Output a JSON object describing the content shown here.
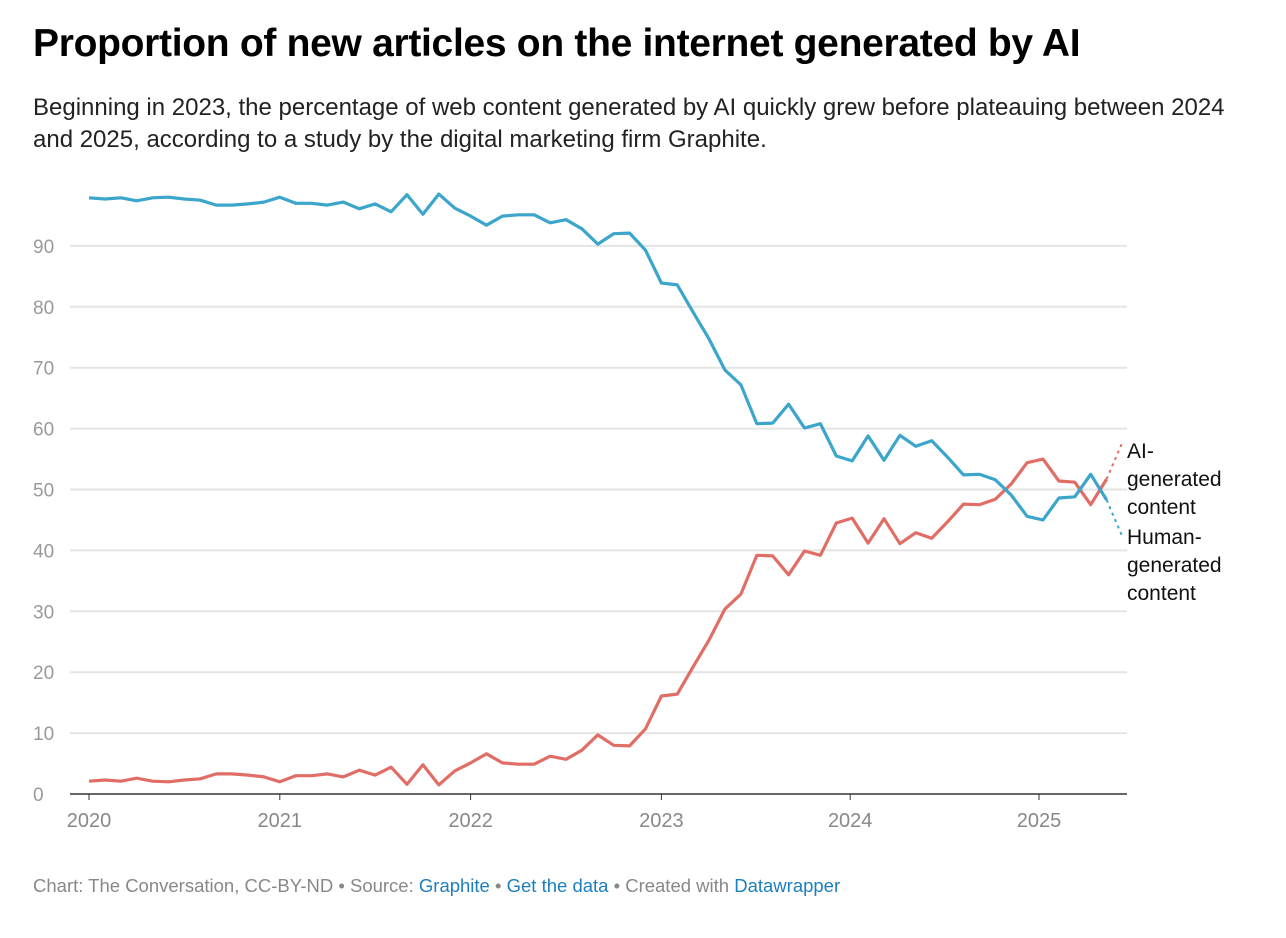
{
  "chart_data": {
    "type": "line",
    "title": "Proportion of new articles on the internet generated by AI",
    "subtitle": "Beginning in 2023, the percentage of web content generated by AI quickly grew before plateauing between 2024 and 2025, according to a study by the digital marketing firm Graphite.",
    "xlabel": "",
    "ylabel": "",
    "ylim": [
      0,
      100
    ],
    "yticks": [
      "0",
      "10",
      "20",
      "30",
      "40",
      "50",
      "60",
      "70",
      "80",
      "90"
    ],
    "xticks": [
      "2020",
      "2021",
      "2022",
      "2023",
      "2024",
      "2025"
    ],
    "x_start": "2020-01",
    "x_step": "month",
    "grid": true,
    "series": [
      {
        "name": "Human-generated content",
        "label_lines": [
          "Human-",
          "generated",
          "content"
        ],
        "color": "#3ba5cb",
        "values": [
          97.9,
          97.7,
          97.9,
          97.4,
          97.9,
          98.0,
          97.7,
          97.5,
          96.7,
          96.7,
          96.9,
          97.2,
          98.0,
          97.0,
          97.0,
          96.7,
          97.2,
          96.1,
          96.9,
          95.6,
          98.4,
          95.2,
          98.5,
          96.2,
          94.9,
          93.4,
          94.9,
          95.1,
          95.1,
          93.8,
          94.3,
          92.8,
          90.3,
          92.0,
          92.1,
          89.3,
          83.9,
          83.6,
          79.1,
          74.7,
          69.6,
          67.2,
          60.8,
          60.9,
          64.0,
          60.1,
          60.8,
          55.5,
          54.7,
          58.8,
          54.8,
          58.9,
          57.1,
          58.0,
          55.3,
          52.4,
          52.5,
          51.6,
          49.1,
          45.6,
          45.0,
          48.6,
          48.8,
          52.5,
          48.3
        ],
        "projected_next": 42.2
      },
      {
        "name": "AI-generated content",
        "label_lines": [
          "AI-",
          "generated",
          "content"
        ],
        "color": "#e06e66",
        "values": [
          2.1,
          2.3,
          2.1,
          2.6,
          2.1,
          2.0,
          2.3,
          2.5,
          3.3,
          3.3,
          3.1,
          2.8,
          2.0,
          3.0,
          3.0,
          3.3,
          2.8,
          3.9,
          3.1,
          4.4,
          1.6,
          4.8,
          1.5,
          3.8,
          5.1,
          6.6,
          5.1,
          4.9,
          4.9,
          6.2,
          5.7,
          7.2,
          9.7,
          8.0,
          7.9,
          10.7,
          16.1,
          16.4,
          20.9,
          25.3,
          30.4,
          32.8,
          39.2,
          39.1,
          36.0,
          39.9,
          39.2,
          44.5,
          45.3,
          41.2,
          45.2,
          41.1,
          42.9,
          42.0,
          44.7,
          47.6,
          47.5,
          48.4,
          50.9,
          54.4,
          55.0,
          51.4,
          51.2,
          47.5,
          51.7
        ],
        "projected_next": 57.8
      }
    ]
  },
  "footer": {
    "prefix": "Chart: The Conversation, CC-BY-ND • Source: ",
    "source_link": "Graphite",
    "sep1": " • ",
    "data_link": "Get the data",
    "sep2": " • Created with ",
    "tool_link": "Datawrapper"
  }
}
